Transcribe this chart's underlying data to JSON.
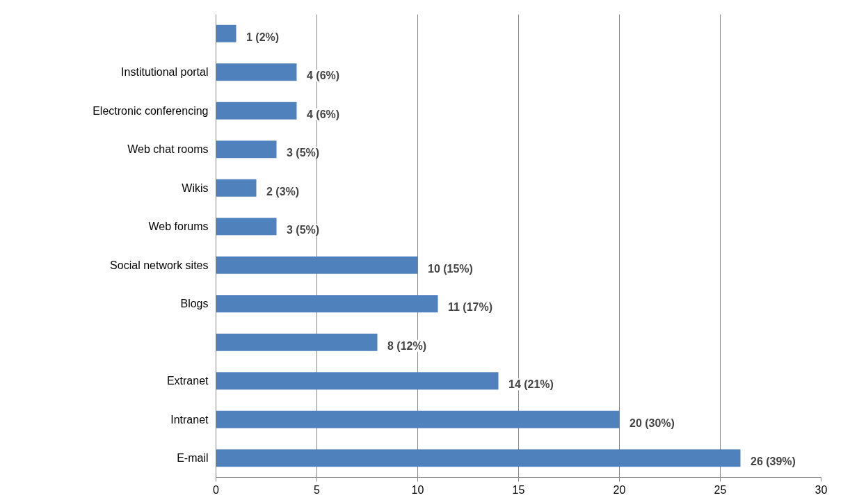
{
  "chart_data": {
    "type": "bar",
    "orientation": "horizontal",
    "categories": [
      null,
      "Institutional portal",
      "Electronic conferencing",
      "Web chat rooms",
      "Wikis",
      "Web forums",
      "Social network sites",
      "Blogs",
      null,
      "Extranet",
      "Intranet",
      "E-mail"
    ],
    "values": [
      1,
      4,
      4,
      3,
      2,
      3,
      10,
      11,
      8,
      14,
      20,
      26
    ],
    "value_labels": [
      "1 (2%)",
      "4 (6%)",
      "4 (6%)",
      "3 (5%)",
      "2 (3%)",
      "3 (5%)",
      "10 (15%)",
      "11 (17%)",
      "8 (12%)",
      "14 (21%)",
      "20 (30%)",
      "26 (39%)"
    ],
    "color": "#4f81bd",
    "xlim": [
      0,
      30
    ],
    "xticks": [
      0,
      5,
      10,
      15,
      20,
      25,
      30
    ],
    "grid": "x"
  }
}
